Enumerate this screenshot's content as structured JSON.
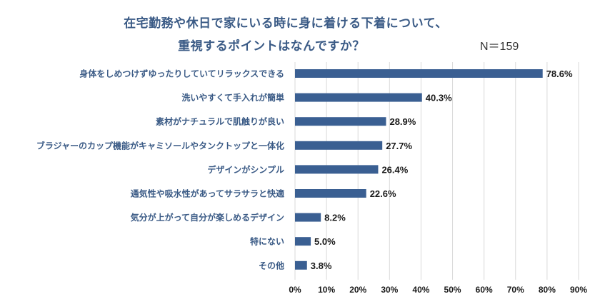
{
  "chart_data": {
    "type": "bar",
    "orientation": "horizontal",
    "title": "在宅勤務や休日で家にいる時に身に着ける下着について、重視するポイントはなんですか？",
    "title_lines": [
      "在宅勤務や休日で家にいる時に身に着ける下着について、",
      "重視するポイントはなんですか？"
    ],
    "sample_size": "N＝159",
    "categories": [
      "身体をしめつけずゆったりしていてリラックスできる",
      "洗いやすくて手入れが簡単",
      "素材がナチュラルで肌触りが良い",
      "ブラジャーのカップ機能がキャミソールやタンクトップと一体化",
      "デザインがシンプル",
      "通気性や吸水性があってサラサラと快適",
      "気分が上がって自分が楽しめるデザイン",
      "特にない",
      "その他"
    ],
    "values": [
      78.6,
      40.3,
      28.9,
      27.7,
      26.4,
      22.6,
      8.2,
      5.0,
      3.8
    ],
    "value_labels": [
      "78.6%",
      "40.3%",
      "28.9%",
      "27.7%",
      "26.4%",
      "22.6%",
      "8.2%",
      "5.0%",
      "3.8%"
    ],
    "xlabel": "",
    "ylabel": "",
    "xlim": [
      0,
      90
    ],
    "x_ticks": [
      0,
      10,
      20,
      30,
      40,
      50,
      60,
      70,
      80,
      90
    ],
    "x_tick_labels": [
      "0%",
      "10%",
      "20%",
      "30%",
      "40%",
      "50%",
      "60%",
      "70%",
      "80%",
      "90%"
    ],
    "grid": "vertical",
    "legend": "none",
    "colors": {
      "bar": "#3a5f92",
      "title": "#3b5b86",
      "grid": "#d9d9d9"
    }
  }
}
